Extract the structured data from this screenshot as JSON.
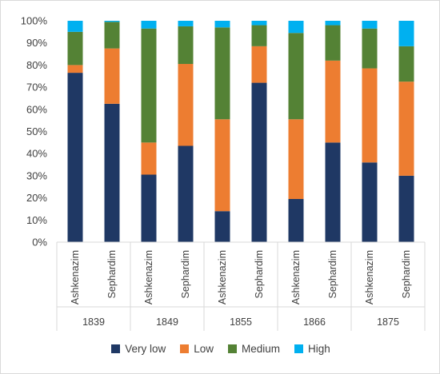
{
  "chart_data": {
    "type": "bar",
    "stacked": true,
    "percent": true,
    "groups": [
      {
        "label": "1839",
        "categories": [
          "Ashkenazim",
          "Sephardim"
        ]
      },
      {
        "label": "1849",
        "categories": [
          "Ashkenazim",
          "Sephardim"
        ]
      },
      {
        "label": "1855",
        "categories": [
          "Ashkenazim",
          "Sephardim"
        ]
      },
      {
        "label": "1866",
        "categories": [
          "Ashkenazim",
          "Sephardim"
        ]
      },
      {
        "label": "1875",
        "categories": [
          "Ashkenazim",
          "Sephardim"
        ]
      }
    ],
    "categories": [
      "Ashkenazim",
      "Sephardim",
      "Ashkenazim",
      "Sephardim",
      "Ashkenazim",
      "Sephardim",
      "Ashkenazim",
      "Sephardim",
      "Ashkenazim",
      "Sephardim"
    ],
    "series": [
      {
        "name": "Very low",
        "color": "#1f3864",
        "values": [
          76.5,
          62.5,
          30.5,
          43.5,
          14.0,
          72.0,
          19.5,
          45.0,
          36.0,
          30.0
        ]
      },
      {
        "name": "Low",
        "color": "#ed7d31",
        "values": [
          3.5,
          25.0,
          14.5,
          37.0,
          41.5,
          16.5,
          36.0,
          37.0,
          42.5,
          42.5
        ]
      },
      {
        "name": "Medium",
        "color": "#548235",
        "values": [
          15.0,
          12.0,
          51.5,
          17.0,
          41.5,
          9.5,
          39.0,
          16.0,
          18.0,
          16.0
        ]
      },
      {
        "name": "High",
        "color": "#00b0f0",
        "values": [
          5.0,
          0.5,
          3.5,
          2.5,
          3.0,
          2.0,
          5.5,
          2.0,
          3.5,
          11.5
        ]
      }
    ],
    "ylim": [
      0,
      100
    ],
    "yticks": [
      "0%",
      "10%",
      "20%",
      "30%",
      "40%",
      "50%",
      "60%",
      "70%",
      "80%",
      "90%",
      "100%"
    ],
    "grid": false,
    "legend_position": "bottom"
  }
}
